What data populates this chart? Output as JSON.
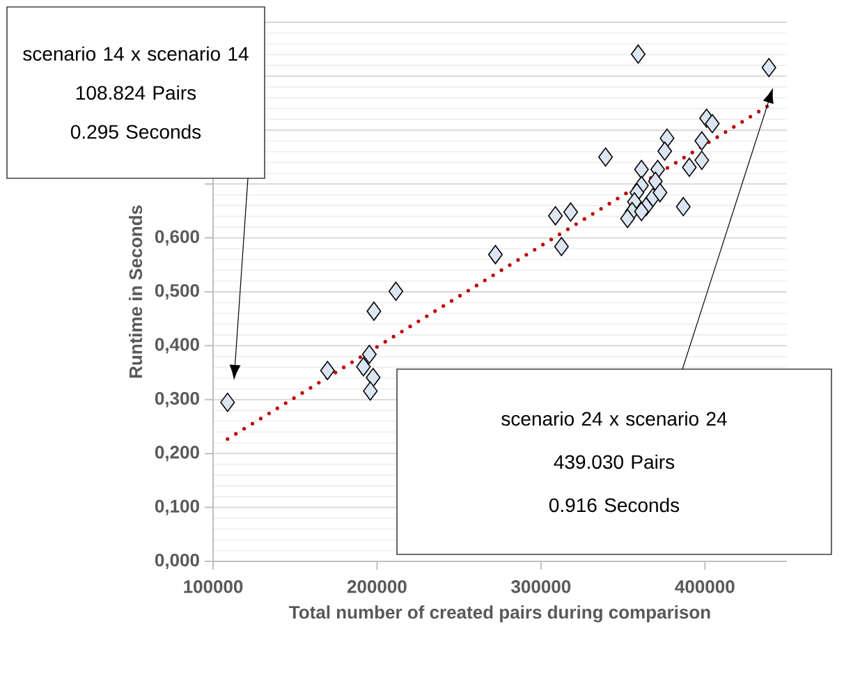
{
  "chart_data": {
    "type": "scatter",
    "xlabel": "Total number of created pairs during comparison",
    "ylabel": "Runtime in Seconds",
    "xlim": [
      100000,
      450000
    ],
    "xticks": [
      100000,
      200000,
      300000,
      400000
    ],
    "ylim": [
      0,
      1.0
    ],
    "yticks": [
      {
        "value": 0,
        "label": "0,000"
      },
      {
        "value": 0.1,
        "label": "0,100"
      },
      {
        "value": 0.2,
        "label": "0,200"
      },
      {
        "value": 0.3,
        "label": "0,300"
      },
      {
        "value": 0.4,
        "label": "0,400"
      },
      {
        "value": 0.5,
        "label": "0,500"
      },
      {
        "value": 0.6,
        "label": "0,600"
      },
      {
        "value": 0.7,
        "label": null
      },
      {
        "value": 0.8,
        "label": null
      },
      {
        "value": 0.9,
        "label": null
      },
      {
        "value": 1.0,
        "label": null
      }
    ],
    "grid": "y",
    "marker": "diamond",
    "series": [
      {
        "color": "#dce6f2",
        "x": [
          108824,
          169800,
          198100,
          211500,
          195300,
          191700,
          197600,
          195900,
          272200,
          312500,
          308800,
          318100,
          339400,
          359300,
          439030,
          401000,
          404500,
          376900,
          398100,
          375500,
          398100,
          390500,
          386800,
          361300,
          371200,
          369800,
          361300,
          358500,
          368300,
          357000,
          364100,
          355600,
          352800,
          361300,
          372600
        ],
        "values": [
          0.295,
          0.354,
          0.464,
          0.501,
          0.384,
          0.361,
          0.341,
          0.316,
          0.569,
          0.584,
          0.641,
          0.648,
          0.75,
          0.941,
          0.916,
          0.822,
          0.812,
          0.785,
          0.78,
          0.761,
          0.744,
          0.731,
          0.658,
          0.727,
          0.727,
          0.705,
          0.697,
          0.684,
          0.675,
          0.667,
          0.658,
          0.649,
          0.636,
          0.649,
          0.684
        ]
      },
      {
        "type": "line",
        "color": "#c00000",
        "line_style": "dotted",
        "marker": "none",
        "x": [
          108824,
          439030
        ],
        "values": [
          0.227,
          0.846
        ]
      }
    ],
    "annotations": [
      "scenario 14 x scenario 14",
      "108.824 Pairs",
      "0.295 Seconds",
      "scenario 24 x scenario 24",
      "439.030 Pairs",
      "0.916 Seconds"
    ]
  }
}
